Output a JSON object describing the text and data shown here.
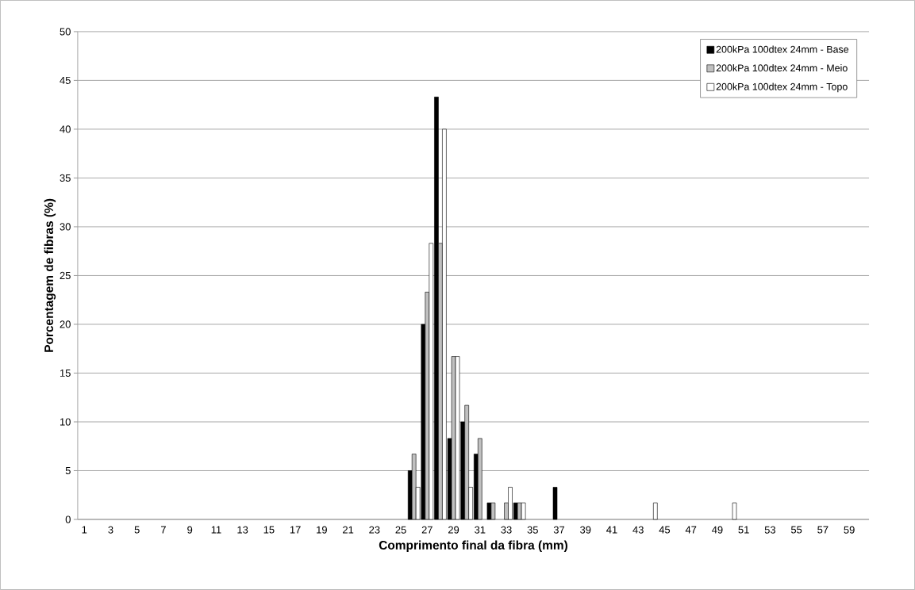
{
  "chart_data": {
    "type": "bar",
    "xlabel": "Comprimento final da fibra (mm)",
    "ylabel": "Porcentagem de fibras (%)",
    "categories": [
      "1",
      null,
      "3",
      null,
      "5",
      null,
      "7",
      null,
      "9",
      null,
      "11",
      null,
      "13",
      null,
      "15",
      null,
      "17",
      null,
      "19",
      null,
      "21",
      null,
      "23",
      null,
      "25",
      null,
      "27",
      null,
      "29",
      null,
      "31",
      null,
      "33",
      null,
      "35",
      null,
      "37",
      null,
      "39",
      null,
      "41",
      null,
      "43",
      null,
      "45",
      null,
      "47",
      null,
      "49",
      null,
      "51",
      null,
      "53",
      null,
      "55",
      null,
      "57",
      null,
      "59",
      null
    ],
    "series": [
      {
        "name": "200kPa 100dtex 24mm - Base",
        "color": "#000000",
        "values": [
          0,
          0,
          0,
          0,
          0,
          0,
          0,
          0,
          0,
          0,
          0,
          0,
          0,
          0,
          0,
          0,
          0,
          0,
          0,
          0,
          0,
          0,
          0,
          0,
          0,
          5,
          20,
          43.3,
          8.3,
          10,
          6.7,
          1.7,
          0,
          1.7,
          0,
          0,
          3.3,
          0,
          0,
          0,
          0,
          0,
          0,
          0,
          0,
          0,
          0,
          0,
          0,
          0,
          0,
          0,
          0,
          0,
          0,
          0,
          0,
          0,
          0,
          0
        ]
      },
      {
        "name": "200kPa 100dtex 24mm - Meio",
        "color": "#c0c0c0",
        "values": [
          0,
          0,
          0,
          0,
          0,
          0,
          0,
          0,
          0,
          0,
          0,
          0,
          0,
          0,
          0,
          0,
          0,
          0,
          0,
          0,
          0,
          0,
          0,
          0,
          0,
          6.7,
          23.3,
          28.3,
          16.7,
          11.7,
          8.3,
          1.7,
          1.7,
          1.7,
          0,
          0,
          0,
          0,
          0,
          0,
          0,
          0,
          0,
          0,
          0,
          0,
          0,
          0,
          0,
          0,
          0,
          0,
          0,
          0,
          0,
          0,
          0,
          0,
          0,
          0
        ]
      },
      {
        "name": "200kPa 100dtex 24mm - Topo",
        "color": "#ffffff",
        "values": [
          0,
          0,
          0,
          0,
          0,
          0,
          0,
          0,
          0,
          0,
          0,
          0,
          0,
          0,
          0,
          0,
          0,
          0,
          0,
          0,
          0,
          0,
          0,
          0,
          0,
          3.3,
          28.3,
          40,
          16.7,
          3.3,
          0,
          0,
          3.3,
          1.7,
          0,
          0,
          0,
          0,
          0,
          0,
          0,
          0,
          0,
          1.7,
          0,
          0,
          0,
          0,
          0,
          1.7,
          0,
          0,
          0,
          0,
          0,
          0,
          0,
          0,
          0,
          0
        ]
      }
    ],
    "ylim": [
      0,
      50
    ],
    "yticks": [
      0,
      5,
      10,
      15,
      20,
      25,
      30,
      35,
      40,
      45,
      50
    ],
    "grid": "y",
    "legend": "top right"
  }
}
